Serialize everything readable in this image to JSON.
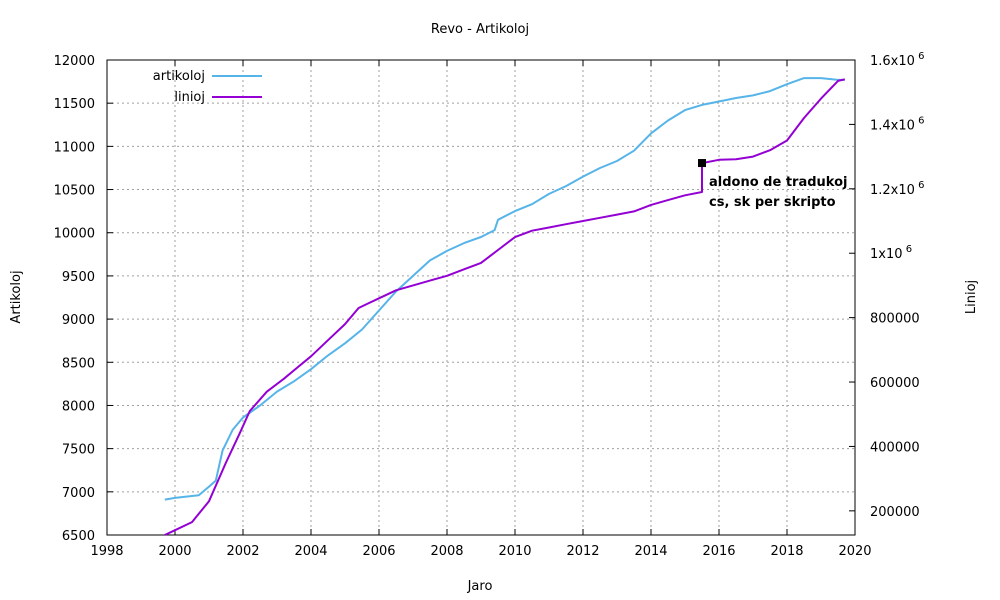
{
  "chart_data": {
    "type": "line",
    "title": "Revo - Artikoloj",
    "xlabel": "Jaro",
    "ylabel": "Artikoloj",
    "y2label": "Linioj",
    "xlim": [
      1998,
      2020
    ],
    "ylim": [
      6500,
      12000
    ],
    "y2lim": [
      125000,
      1600000
    ],
    "grid": true,
    "legend_position": "top-left",
    "x_ticks": [
      "1998",
      "2000",
      "2002",
      "2004",
      "2006",
      "2008",
      "2010",
      "2012",
      "2014",
      "2016",
      "2018",
      "2020"
    ],
    "y_ticks": [
      "6500",
      "7000",
      "7500",
      "8000",
      "8500",
      "9000",
      "9500",
      "10000",
      "10500",
      "11000",
      "11500",
      "12000"
    ],
    "y2_ticks": [
      {
        "base": "200000",
        "exp": ""
      },
      {
        "base": "400000",
        "exp": ""
      },
      {
        "base": "600000",
        "exp": ""
      },
      {
        "base": "800000",
        "exp": ""
      },
      {
        "base": "1x10",
        "exp": "6"
      },
      {
        "base": "1.2x10",
        "exp": "6"
      },
      {
        "base": "1.4x10",
        "exp": "6"
      },
      {
        "base": "1.6x10",
        "exp": "6"
      }
    ],
    "series": [
      {
        "name": "artikoloj",
        "axis": "left",
        "color": "#56b4e9",
        "points": [
          [
            1999.7,
            6910
          ],
          [
            2000.0,
            6930
          ],
          [
            2000.7,
            6960
          ],
          [
            2001.0,
            7060
          ],
          [
            2001.2,
            7130
          ],
          [
            2001.4,
            7480
          ],
          [
            2001.7,
            7720
          ],
          [
            2002.0,
            7860
          ],
          [
            2002.5,
            8000
          ],
          [
            2003.0,
            8160
          ],
          [
            2003.5,
            8280
          ],
          [
            2004.0,
            8420
          ],
          [
            2004.5,
            8580
          ],
          [
            2005.0,
            8720
          ],
          [
            2005.5,
            8880
          ],
          [
            2006.0,
            9100
          ],
          [
            2006.5,
            9320
          ],
          [
            2007.0,
            9500
          ],
          [
            2007.5,
            9680
          ],
          [
            2008.0,
            9790
          ],
          [
            2008.5,
            9880
          ],
          [
            2009.0,
            9950
          ],
          [
            2009.4,
            10030
          ],
          [
            2009.5,
            10150
          ],
          [
            2010.0,
            10250
          ],
          [
            2010.5,
            10330
          ],
          [
            2011.0,
            10450
          ],
          [
            2011.5,
            10540
          ],
          [
            2012.0,
            10650
          ],
          [
            2012.5,
            10750
          ],
          [
            2013.0,
            10830
          ],
          [
            2013.5,
            10950
          ],
          [
            2014.0,
            11150
          ],
          [
            2014.5,
            11300
          ],
          [
            2015.0,
            11420
          ],
          [
            2015.5,
            11480
          ],
          [
            2016.0,
            11520
          ],
          [
            2016.5,
            11560
          ],
          [
            2017.0,
            11590
          ],
          [
            2017.5,
            11640
          ],
          [
            2018.0,
            11720
          ],
          [
            2018.5,
            11790
          ],
          [
            2019.0,
            11790
          ],
          [
            2019.5,
            11770
          ],
          [
            2019.7,
            11770
          ]
        ]
      },
      {
        "name": "linioj",
        "axis": "right",
        "color": "#9400d3",
        "points": [
          [
            1999.7,
            125000
          ],
          [
            2000.0,
            140000
          ],
          [
            2000.5,
            165000
          ],
          [
            2001.0,
            230000
          ],
          [
            2001.5,
            350000
          ],
          [
            2001.9,
            440000
          ],
          [
            2002.2,
            510000
          ],
          [
            2002.7,
            570000
          ],
          [
            2003.2,
            610000
          ],
          [
            2003.6,
            645000
          ],
          [
            2004.0,
            680000
          ],
          [
            2004.5,
            730000
          ],
          [
            2005.0,
            780000
          ],
          [
            2005.4,
            830000
          ],
          [
            2005.7,
            845000
          ],
          [
            2006.0,
            860000
          ],
          [
            2006.5,
            885000
          ],
          [
            2007.0,
            900000
          ],
          [
            2007.5,
            915000
          ],
          [
            2008.0,
            930000
          ],
          [
            2008.5,
            950000
          ],
          [
            2009.0,
            970000
          ],
          [
            2009.5,
            1010000
          ],
          [
            2010.0,
            1050000
          ],
          [
            2010.5,
            1070000
          ],
          [
            2011.0,
            1080000
          ],
          [
            2011.5,
            1090000
          ],
          [
            2012.0,
            1100000
          ],
          [
            2012.5,
            1110000
          ],
          [
            2013.0,
            1120000
          ],
          [
            2013.5,
            1130000
          ],
          [
            2014.0,
            1150000
          ],
          [
            2014.5,
            1165000
          ],
          [
            2015.0,
            1180000
          ],
          [
            2015.5,
            1190000
          ],
          [
            2015.5,
            1280000
          ],
          [
            2016.0,
            1290000
          ],
          [
            2016.5,
            1292000
          ],
          [
            2017.0,
            1300000
          ],
          [
            2017.5,
            1320000
          ],
          [
            2018.0,
            1350000
          ],
          [
            2018.5,
            1420000
          ],
          [
            2019.0,
            1480000
          ],
          [
            2019.5,
            1535000
          ],
          [
            2019.7,
            1540000
          ]
        ]
      }
    ],
    "annotation": {
      "x": 2015.5,
      "y2": 1280000,
      "lines": [
        "aldono de tradukoj",
        "cs, sk per skripto"
      ]
    }
  }
}
